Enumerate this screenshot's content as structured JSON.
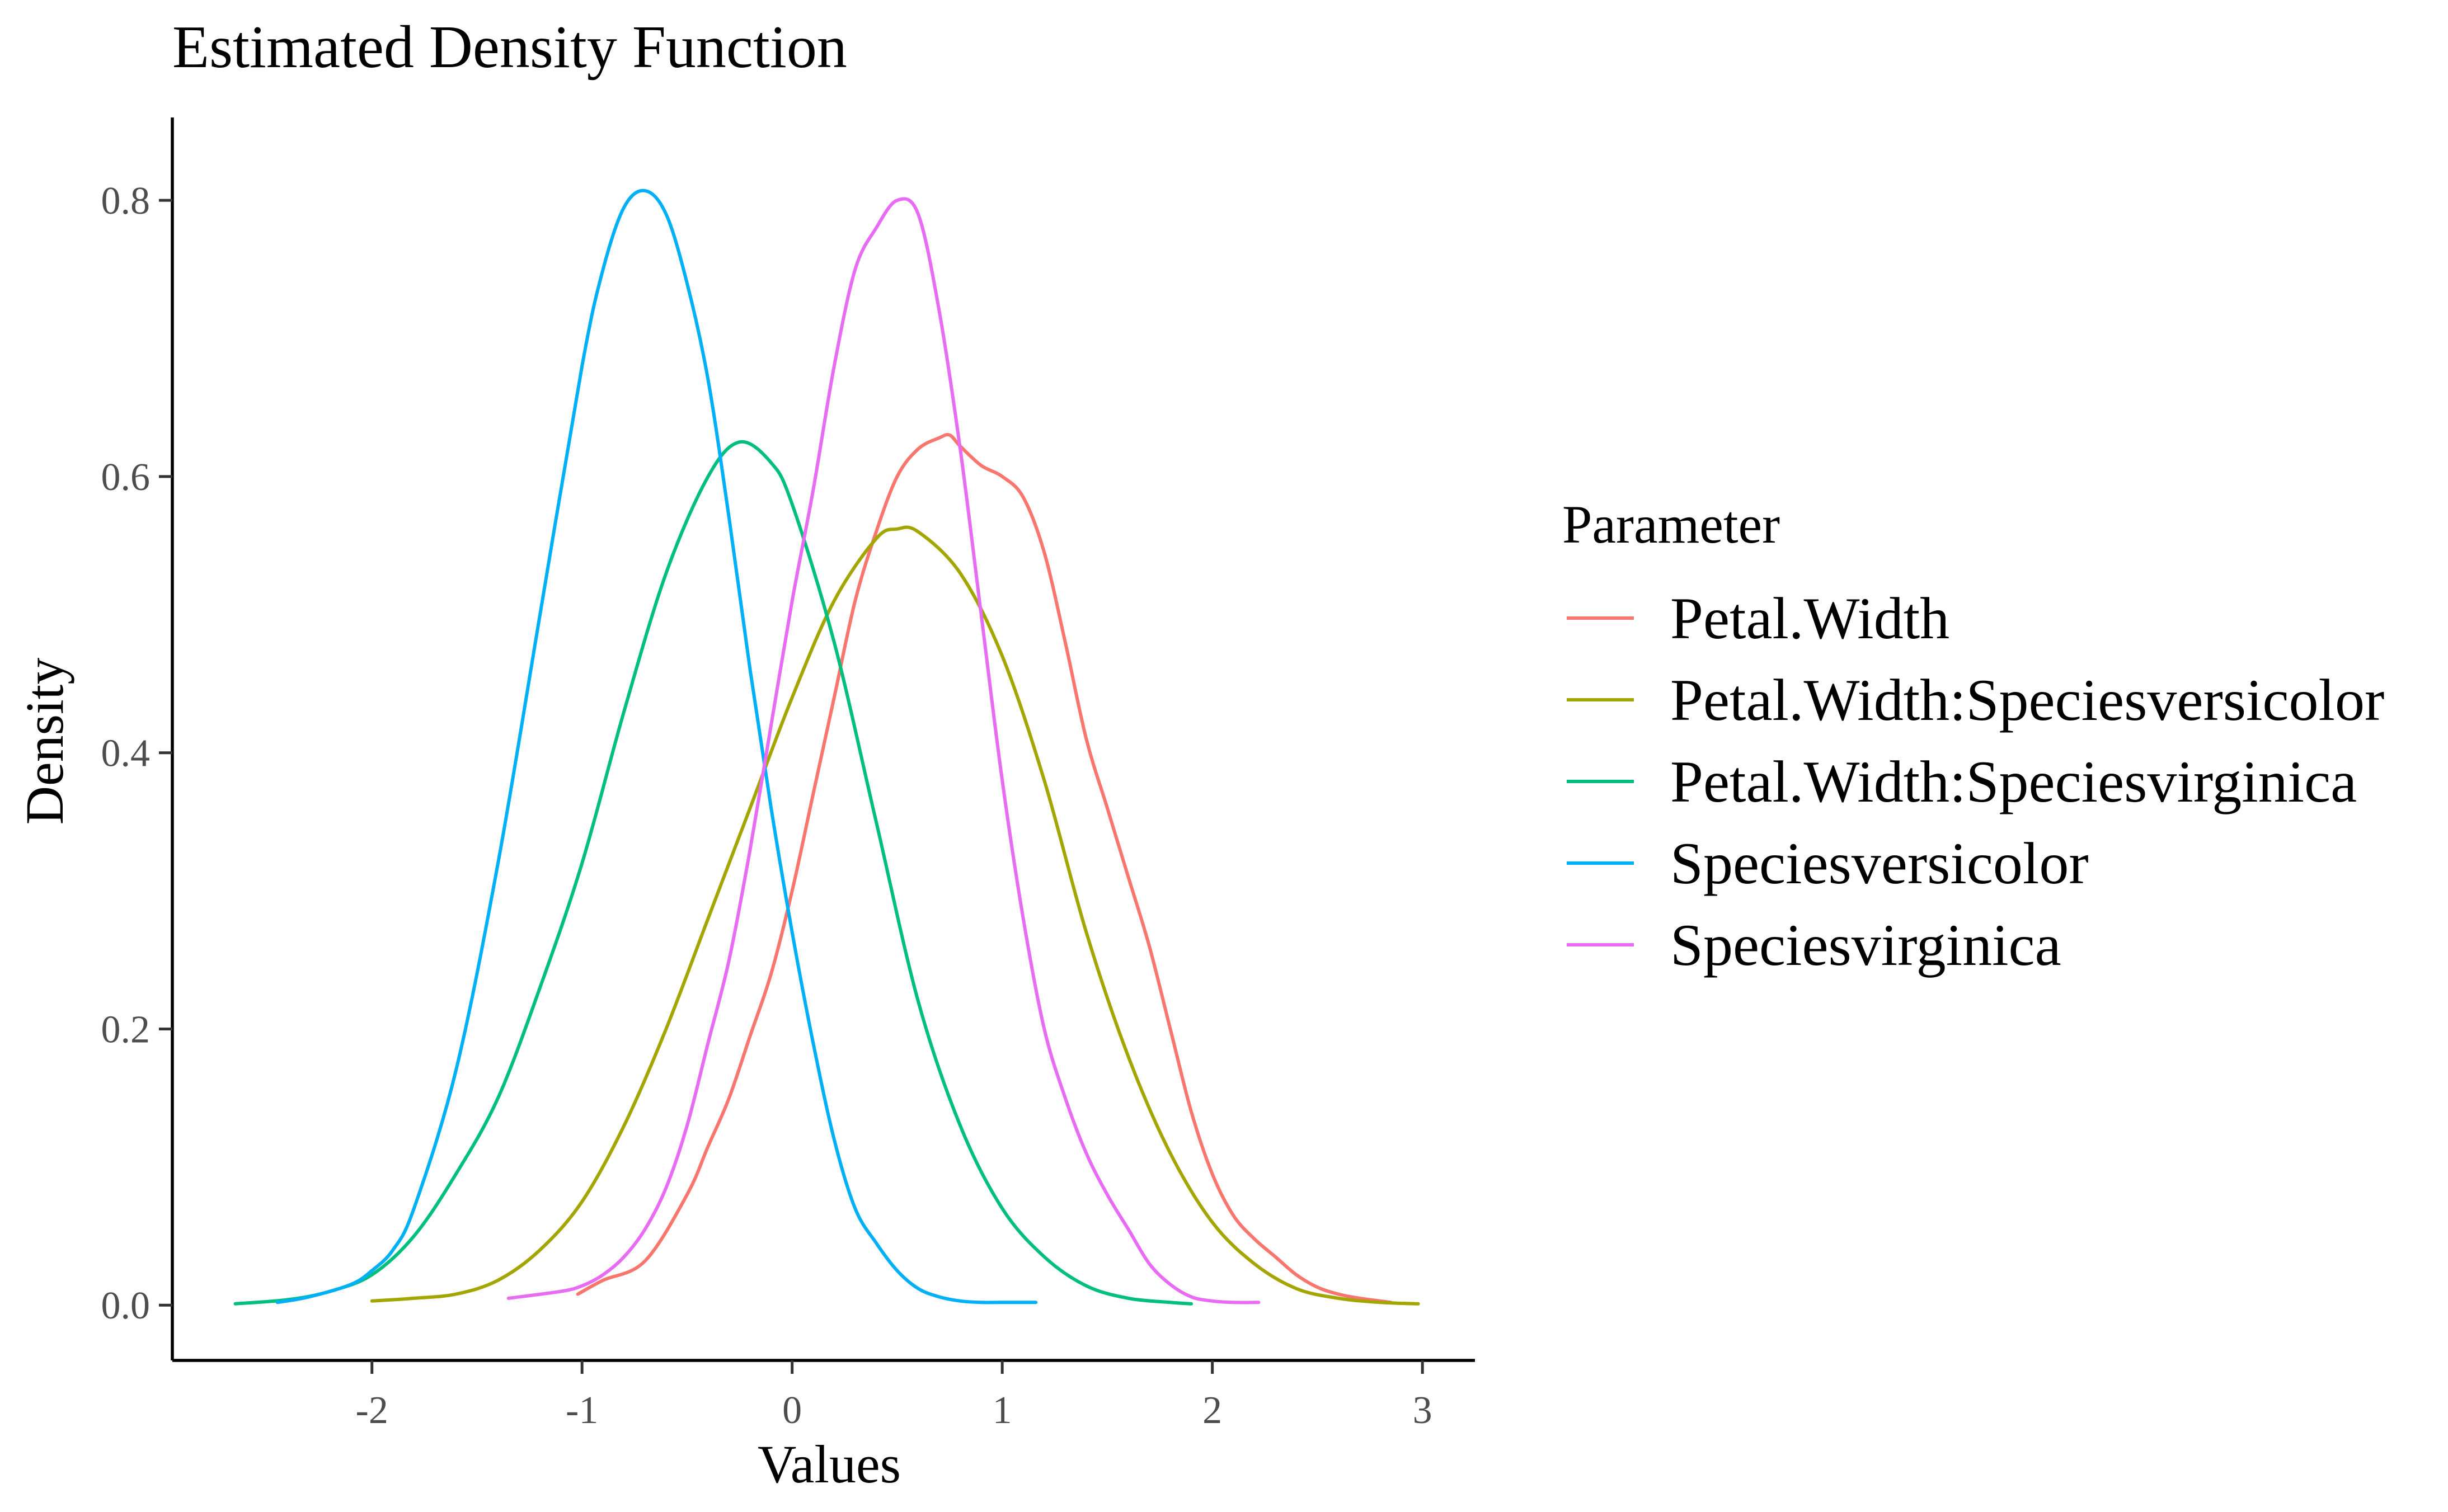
{
  "chart_data": {
    "type": "line",
    "title": "Estimated Density Function",
    "xlabel": "Values",
    "ylabel": "Density",
    "xlim": [
      -2.95,
      3.25
    ],
    "ylim": [
      -0.04,
      0.86
    ],
    "xticks": [
      -2,
      -1,
      0,
      1,
      2,
      3
    ],
    "xtick_labels": [
      "-2",
      "-1",
      "0",
      "1",
      "2",
      "3"
    ],
    "yticks": [
      0.0,
      0.2,
      0.4,
      0.6,
      0.8
    ],
    "ytick_labels": [
      "0.0",
      "0.2",
      "0.4",
      "0.6",
      "0.8"
    ],
    "grid": false,
    "legend": {
      "title": "Parameter",
      "position": "right"
    },
    "series": [
      {
        "name": "Petal.Width",
        "color": "#F8766D",
        "x": [
          -1.02,
          -0.9,
          -0.7,
          -0.5,
          -0.4,
          -0.3,
          -0.2,
          -0.1,
          0.0,
          0.1,
          0.2,
          0.3,
          0.4,
          0.5,
          0.6,
          0.7,
          0.75,
          0.8,
          0.9,
          1.0,
          1.1,
          1.2,
          1.3,
          1.4,
          1.5,
          1.6,
          1.7,
          1.8,
          1.9,
          2.0,
          2.1,
          2.2,
          2.3,
          2.4,
          2.5,
          2.6,
          2.7,
          2.85
        ],
        "y": [
          0.008,
          0.018,
          0.032,
          0.08,
          0.115,
          0.15,
          0.195,
          0.24,
          0.3,
          0.37,
          0.44,
          0.51,
          0.56,
          0.6,
          0.62,
          0.628,
          0.63,
          0.622,
          0.608,
          0.6,
          0.585,
          0.545,
          0.48,
          0.41,
          0.36,
          0.31,
          0.26,
          0.2,
          0.14,
          0.095,
          0.065,
          0.048,
          0.035,
          0.022,
          0.013,
          0.008,
          0.005,
          0.002
        ]
      },
      {
        "name": "Petal.Width:Speciesversicolor",
        "color": "#A3A500",
        "x": [
          -2.0,
          -1.8,
          -1.6,
          -1.4,
          -1.2,
          -1.0,
          -0.8,
          -0.6,
          -0.4,
          -0.2,
          0.0,
          0.2,
          0.4,
          0.5,
          0.6,
          0.8,
          1.0,
          1.2,
          1.4,
          1.6,
          1.8,
          2.0,
          2.2,
          2.4,
          2.6,
          2.8,
          2.98
        ],
        "y": [
          0.003,
          0.005,
          0.008,
          0.018,
          0.04,
          0.075,
          0.13,
          0.2,
          0.28,
          0.36,
          0.44,
          0.51,
          0.555,
          0.562,
          0.56,
          0.53,
          0.47,
          0.38,
          0.27,
          0.18,
          0.11,
          0.06,
          0.03,
          0.012,
          0.005,
          0.002,
          0.001
        ]
      },
      {
        "name": "Petal.Width:Speciesvirginica",
        "color": "#00BF7D",
        "x": [
          -2.65,
          -2.4,
          -2.2,
          -2.0,
          -1.8,
          -1.6,
          -1.4,
          -1.2,
          -1.0,
          -0.8,
          -0.6,
          -0.4,
          -0.25,
          -0.1,
          0.0,
          0.2,
          0.4,
          0.6,
          0.8,
          1.0,
          1.2,
          1.4,
          1.6,
          1.8,
          1.9
        ],
        "y": [
          0.001,
          0.004,
          0.01,
          0.022,
          0.05,
          0.095,
          0.15,
          0.23,
          0.32,
          0.43,
          0.53,
          0.6,
          0.625,
          0.61,
          0.58,
          0.48,
          0.35,
          0.22,
          0.13,
          0.07,
          0.035,
          0.014,
          0.005,
          0.002,
          0.001
        ]
      },
      {
        "name": "Speciesversicolor",
        "color": "#00B0F6",
        "x": [
          -2.45,
          -2.3,
          -2.1,
          -2.0,
          -1.9,
          -1.8,
          -1.6,
          -1.4,
          -1.2,
          -1.0,
          -0.9,
          -0.8,
          -0.7,
          -0.6,
          -0.5,
          -0.4,
          -0.3,
          -0.2,
          -0.1,
          0.0,
          0.1,
          0.2,
          0.3,
          0.4,
          0.5,
          0.6,
          0.7,
          0.8,
          0.9,
          1.0,
          1.16
        ],
        "y": [
          0.002,
          0.006,
          0.015,
          0.025,
          0.04,
          0.07,
          0.17,
          0.32,
          0.5,
          0.68,
          0.75,
          0.795,
          0.807,
          0.79,
          0.74,
          0.67,
          0.57,
          0.46,
          0.36,
          0.27,
          0.19,
          0.12,
          0.07,
          0.045,
          0.025,
          0.012,
          0.006,
          0.003,
          0.002,
          0.002,
          0.002
        ]
      },
      {
        "name": "Speciesvirginica",
        "color": "#E76BF3",
        "x": [
          -1.35,
          -1.1,
          -1.0,
          -0.9,
          -0.8,
          -0.7,
          -0.6,
          -0.5,
          -0.4,
          -0.3,
          -0.2,
          -0.1,
          0.0,
          0.1,
          0.2,
          0.3,
          0.4,
          0.5,
          0.6,
          0.7,
          0.8,
          0.9,
          1.0,
          1.1,
          1.2,
          1.3,
          1.4,
          1.5,
          1.6,
          1.7,
          1.8,
          1.9,
          2.0,
          2.1,
          2.22
        ],
        "y": [
          0.005,
          0.01,
          0.014,
          0.022,
          0.035,
          0.055,
          0.085,
          0.13,
          0.19,
          0.25,
          0.33,
          0.42,
          0.51,
          0.59,
          0.68,
          0.75,
          0.78,
          0.8,
          0.79,
          0.72,
          0.62,
          0.5,
          0.38,
          0.28,
          0.2,
          0.15,
          0.11,
          0.08,
          0.055,
          0.03,
          0.015,
          0.006,
          0.003,
          0.002,
          0.002
        ]
      }
    ]
  }
}
